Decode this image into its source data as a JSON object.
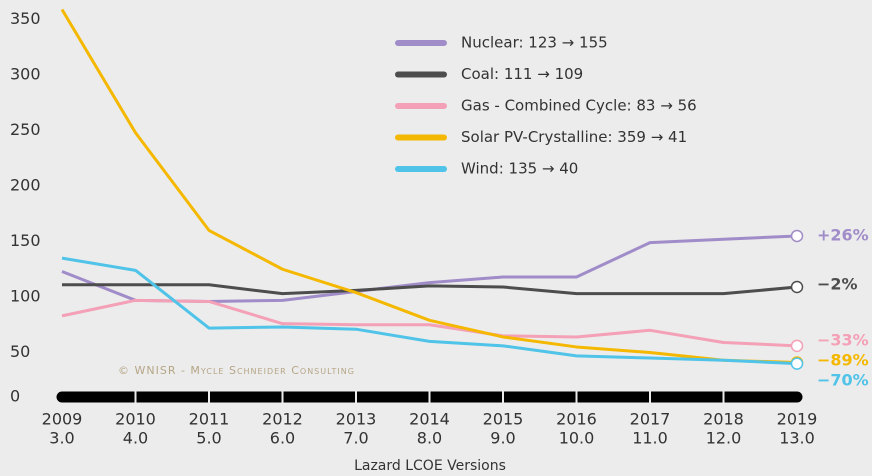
{
  "chart_data": {
    "type": "line",
    "x_label": "Lazard LCOE Versions",
    "watermark": "© WNISR - Mycle Schneider Consulting",
    "categories": [
      "2009",
      "2010",
      "2011",
      "2012",
      "2013",
      "2014",
      "2015",
      "2016",
      "2017",
      "2018",
      "2019"
    ],
    "versions": [
      "3.0",
      "4.0",
      "5.0",
      "6.0",
      "7.0",
      "8.0",
      "9.0",
      "10.0",
      "11.0",
      "12.0",
      "13.0"
    ],
    "ylim": [
      0,
      360
    ],
    "yticks": [
      0,
      50,
      100,
      150,
      200,
      250,
      300,
      350
    ],
    "series": [
      {
        "name": "Nuclear: 123 → 155",
        "color": "#a08cc8",
        "change": "+26%",
        "values": [
          123,
          97,
          96,
          97,
          105,
          113,
          118,
          118,
          149,
          152,
          155
        ]
      },
      {
        "name": "Coal: 111 → 109",
        "color": "#4d4d4d",
        "change": "−2%",
        "values": [
          111,
          111,
          111,
          103,
          106,
          110,
          109,
          103,
          103,
          103,
          109
        ]
      },
      {
        "name": "Gas - Combined Cycle: 83 → 56",
        "color": "#f4a0b6",
        "change": "−33%",
        "values": [
          83,
          97,
          96,
          76,
          75,
          75,
          65,
          64,
          70,
          59,
          56
        ]
      },
      {
        "name": "Solar PV-Crystalline: 359 → 41",
        "color": "#f5b800",
        "change": "−89%",
        "values": [
          359,
          248,
          160,
          125,
          104,
          79,
          64,
          55,
          50,
          43,
          41
        ]
      },
      {
        "name": "Wind: 135 → 40",
        "color": "#4fc3e8",
        "change": "−70%",
        "values": [
          135,
          124,
          72,
          73,
          71,
          60,
          56,
          47,
          45,
          43,
          40
        ]
      }
    ]
  }
}
